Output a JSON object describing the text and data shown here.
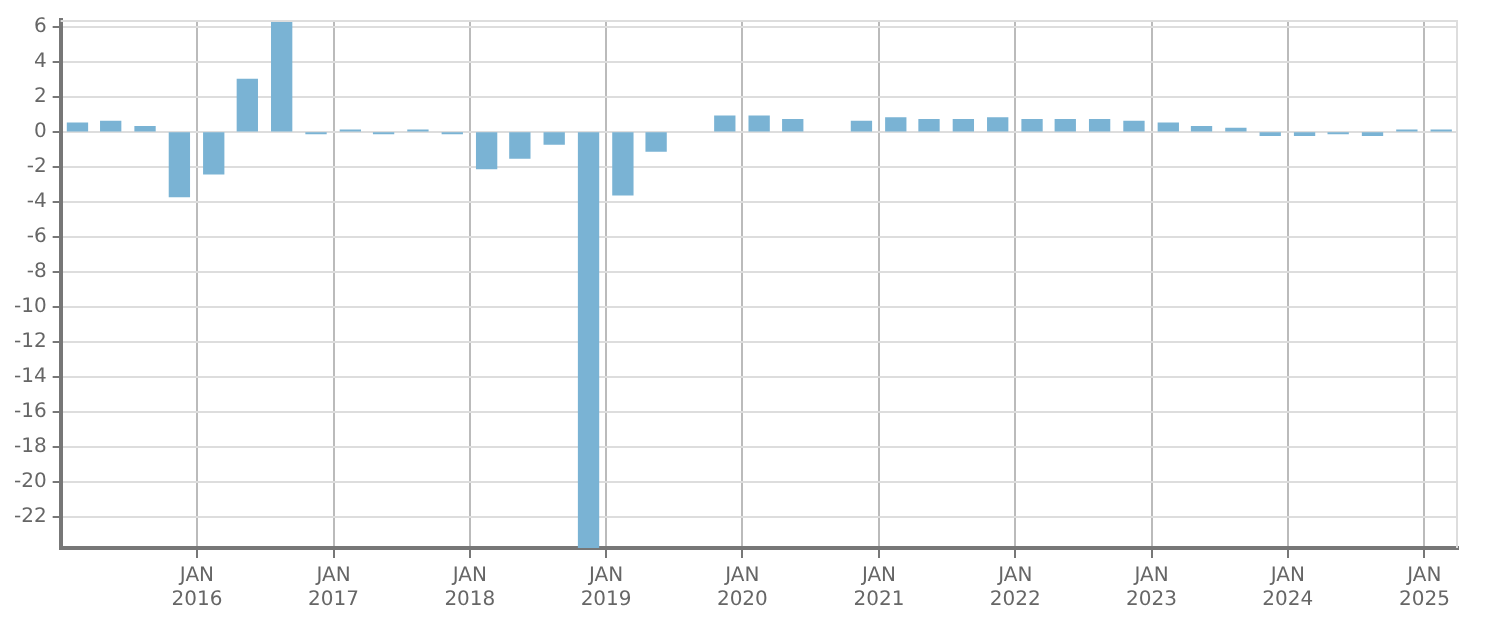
{
  "chart_data": {
    "type": "bar",
    "color": "#7ab3d4",
    "x": [
      "2015-02-15",
      "2015-05-15",
      "2015-08-15",
      "2015-11-15",
      "2016-02-15",
      "2016-05-15",
      "2016-08-15",
      "2016-11-15",
      "2017-02-15",
      "2017-05-15",
      "2017-08-15",
      "2017-11-15",
      "2018-02-15",
      "2018-05-15",
      "2018-08-15",
      "2018-11-15",
      "2019-02-15",
      "2019-05-15",
      "2019-08-15",
      "2019-11-15",
      "2020-02-15",
      "2020-05-15",
      "2020-08-15",
      "2020-11-15",
      "2021-02-15",
      "2021-05-15",
      "2021-08-15",
      "2021-11-15",
      "2022-02-15",
      "2022-05-15",
      "2022-08-15",
      "2022-11-15",
      "2023-02-15",
      "2023-05-15",
      "2023-08-15",
      "2023-11-15",
      "2024-02-15",
      "2024-05-15",
      "2024-08-15",
      "2024-11-15",
      "2025-02-15"
    ],
    "values": [
      0.5,
      0.6,
      0.3,
      -3.7,
      -2.4,
      3.0,
      6.3,
      -0.1,
      0.1,
      -0.1,
      0.1,
      -0.1,
      -2.1,
      -1.5,
      -0.7,
      -23.8,
      -3.6,
      -1.1,
      null,
      0.9,
      0.9,
      0.7,
      null,
      0.6,
      0.8,
      0.7,
      0.7,
      0.8,
      0.7,
      0.7,
      0.7,
      0.6,
      0.5,
      0.3,
      0.2,
      -0.2,
      -0.2,
      -0.1,
      -0.2,
      0.1,
      0.1
    ],
    "xlim": [
      "2015-01-01",
      "2025-04-01"
    ],
    "xticks": [
      {
        "value": "2016-01-01",
        "label": "JAN 2016"
      },
      {
        "value": "2017-01-01",
        "label": "JAN 2017"
      },
      {
        "value": "2018-01-01",
        "label": "JAN 2018"
      },
      {
        "value": "2019-01-01",
        "label": "JAN 2019"
      },
      {
        "value": "2020-01-01",
        "label": "JAN 2020"
      },
      {
        "value": "2021-01-01",
        "label": "JAN 2021"
      },
      {
        "value": "2022-01-01",
        "label": "JAN 2022"
      },
      {
        "value": "2023-01-01",
        "label": "JAN 2023"
      },
      {
        "value": "2024-01-01",
        "label": "JAN 2024"
      },
      {
        "value": "2025-01-01",
        "label": "JAN 2025"
      }
    ],
    "ylim": [
      -23.8,
      6.4
    ],
    "yticks": [
      -22,
      -20,
      -18,
      -16,
      -14,
      -12,
      -10,
      -8,
      -6,
      -4,
      -2,
      0,
      2,
      4,
      6
    ],
    "grid": true
  }
}
